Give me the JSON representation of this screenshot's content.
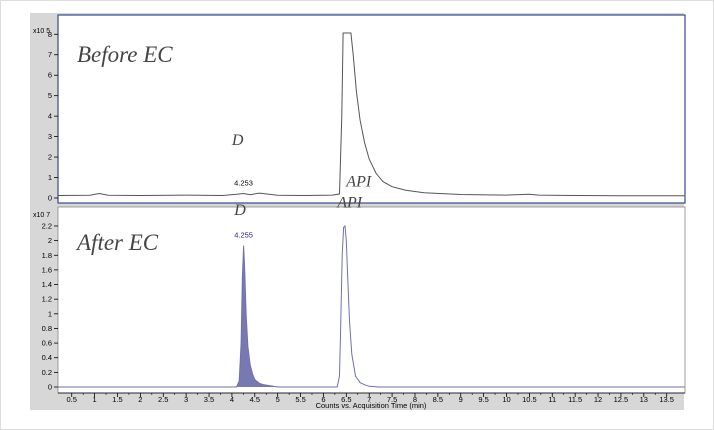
{
  "chart_data": [
    {
      "type": "line",
      "panel_label": "Before EC",
      "y_multiplier": "x10 5",
      "yticks": [
        "0",
        "1",
        "2",
        "3",
        "4",
        "5",
        "6",
        "7",
        "8"
      ],
      "ylim": [
        0,
        8.6
      ],
      "xlim": [
        0.2,
        13.9
      ],
      "grid": false,
      "series": [
        {
          "x": [
            0.2,
            0.9,
            1.1,
            1.3,
            2.0,
            3.0,
            3.8,
            4.1,
            4.253,
            4.4,
            4.6,
            5.0,
            5.6,
            6.2,
            6.35,
            6.4,
            6.43,
            6.46,
            6.5,
            6.56,
            6.6,
            6.65,
            6.72,
            6.8,
            6.9,
            7.0,
            7.15,
            7.3,
            7.5,
            7.8,
            8.2,
            9.0,
            10.0,
            10.5,
            10.7,
            11.5,
            12.5,
            13.9
          ],
          "y": [
            0.12,
            0.13,
            0.22,
            0.13,
            0.12,
            0.14,
            0.12,
            0.18,
            0.22,
            0.16,
            0.24,
            0.13,
            0.12,
            0.14,
            0.2,
            4.0,
            8.6,
            8.6,
            8.6,
            8.6,
            8.6,
            7.0,
            5.2,
            3.8,
            2.7,
            1.9,
            1.2,
            0.8,
            0.55,
            0.38,
            0.26,
            0.17,
            0.14,
            0.18,
            0.14,
            0.12,
            0.11,
            0.11
          ]
        }
      ],
      "annotations": [
        {
          "text": "D",
          "x": 4.0,
          "y": 2.6
        },
        {
          "text": "4.253",
          "x": 4.253,
          "y": 0.6
        },
        {
          "text": "API",
          "x": 6.5,
          "y": 0.55
        }
      ]
    },
    {
      "type": "area",
      "panel_label": "After EC",
      "y_multiplier": "x10 7",
      "yticks": [
        "0",
        "0.2",
        "0.4",
        "0.6",
        "0.8",
        "1",
        "1.2",
        "1.4",
        "1.6",
        "1.8",
        "2",
        "2.2"
      ],
      "ylim": [
        0,
        2.35
      ],
      "xlim": [
        0.2,
        13.9
      ],
      "xticks": [
        "0.5",
        "1",
        "1.5",
        "2",
        "2.5",
        "3",
        "3.5",
        "4",
        "4.5",
        "5",
        "5.5",
        "6",
        "6.5",
        "7",
        "7.5",
        "8",
        "8.5",
        "9",
        "9.5",
        "10",
        "10.5",
        "11",
        "11.5",
        "12",
        "12.5",
        "13",
        "13.5"
      ],
      "xlabel": "Counts vs. Acquisition Time (min)",
      "grid": false,
      "series": [
        {
          "x": [
            0.2,
            4.1,
            4.16,
            4.2,
            4.23,
            4.255,
            4.28,
            4.31,
            4.35,
            4.4,
            4.45,
            4.5,
            4.6,
            4.7,
            4.8,
            4.9,
            5.0,
            6.3,
            6.35,
            6.38,
            6.41,
            6.44,
            6.47,
            6.5,
            6.53,
            6.57,
            6.62,
            6.7,
            6.8,
            6.9,
            7.0,
            7.2,
            13.9
          ],
          "y": [
            0.0,
            0.0,
            0.08,
            0.6,
            1.5,
            1.93,
            1.6,
            1.0,
            0.55,
            0.3,
            0.18,
            0.1,
            0.05,
            0.03,
            0.02,
            0.01,
            0.0,
            0.0,
            0.15,
            0.9,
            1.8,
            2.18,
            2.2,
            2.0,
            1.5,
            0.9,
            0.45,
            0.15,
            0.06,
            0.03,
            0.01,
            0.0,
            0.0
          ]
        }
      ],
      "filled_peak_range": [
        4.1,
        5.0
      ],
      "annotations": [
        {
          "text": "D",
          "x": 4.05,
          "y": 2.35
        },
        {
          "text": "4.255",
          "x": 4.255,
          "y": 2.04
        },
        {
          "text": "API",
          "x": 6.3,
          "y": 2.45
        }
      ]
    }
  ],
  "colors": {
    "top_trace": "#555555",
    "bottom_trace": "#6f6fb4",
    "bottom_fill": "#6a6aaa",
    "peak_label_blue": "#2222aa",
    "frame_blue": "#3a4a8a",
    "background_gray": "#d7d7d7"
  }
}
